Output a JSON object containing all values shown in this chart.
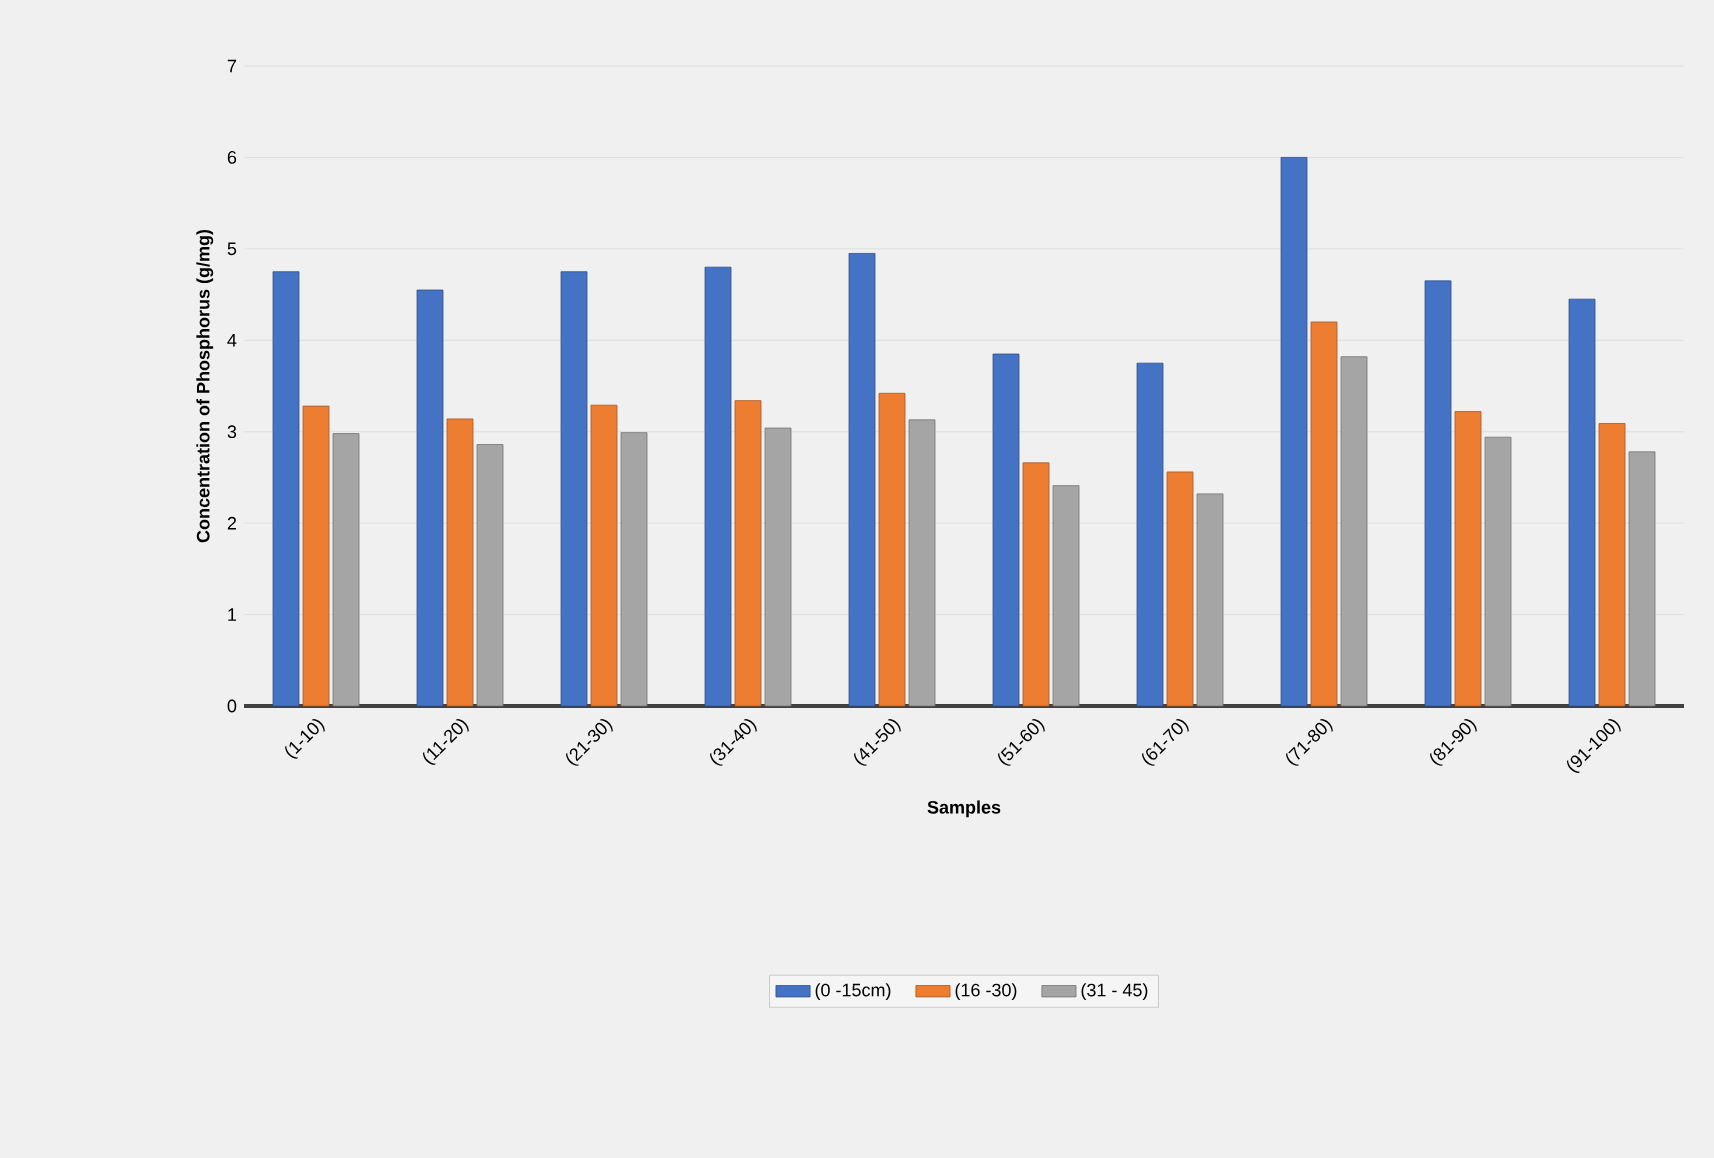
{
  "chart_data": {
    "type": "bar",
    "xlabel": "Samples",
    "ylabel": "Concentration of Phosphorus (g/mg)",
    "categories": [
      "(1-10)",
      "(11-20)",
      "(21-30)",
      "(31-40)",
      "(41-50)",
      "(51-60)",
      "(61-70)",
      "(71-80)",
      "(81-90)",
      "(91-100)"
    ],
    "series": [
      {
        "name": "(0 -15cm)",
        "color": "#4472c4",
        "values": [
          4.75,
          4.55,
          4.75,
          4.8,
          4.95,
          3.85,
          3.75,
          6.0,
          4.65,
          4.45
        ]
      },
      {
        "name": "(16 -30)",
        "color": "#ed7d31",
        "values": [
          3.28,
          3.14,
          3.29,
          3.34,
          3.42,
          2.66,
          2.56,
          4.2,
          3.22,
          3.09
        ]
      },
      {
        "name": "(31 - 45)",
        "color": "#a5a5a5",
        "values": [
          2.98,
          2.86,
          2.99,
          3.04,
          3.13,
          2.41,
          2.32,
          3.82,
          2.94,
          2.78
        ]
      }
    ],
    "ylim": [
      0,
      7
    ],
    "yticks": [
      0,
      1,
      2,
      3,
      4,
      5,
      6,
      7
    ],
    "grid": "y",
    "legend": "bottom"
  }
}
